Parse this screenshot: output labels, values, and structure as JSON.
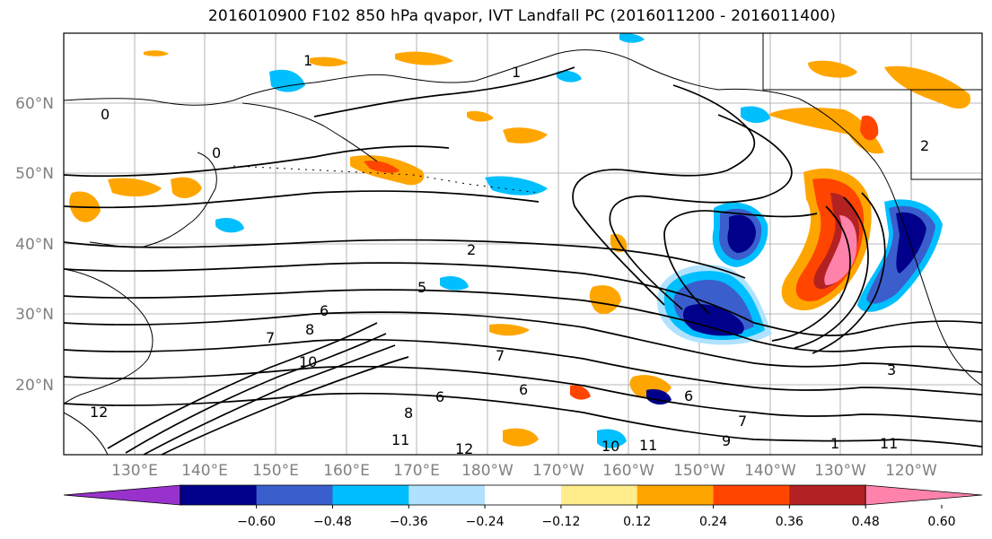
{
  "title": "2016010900 F102 850 hPa qvapor, IVT Landfall PC (2016011200 - 2016011400)",
  "lat_labels": [
    "60°N",
    "50°N",
    "40°N",
    "30°N",
    "20°N"
  ],
  "lon_labels": [
    "130°E",
    "140°E",
    "150°E",
    "160°E",
    "170°E",
    "180°W",
    "170°W",
    "160°W",
    "150°W",
    "140°W",
    "130°W",
    "120°W"
  ],
  "colorbar": {
    "colors": [
      "#9932cc",
      "#00008b",
      "#3a5fcd",
      "#00bfff",
      "#b0e2ff",
      "#ffffff",
      "#ffec8b",
      "#ffa500",
      "#ff4500",
      "#b22222",
      "#ff82ab"
    ],
    "tick_labels": [
      "-0.60",
      "-0.48",
      "-0.36",
      "-0.24",
      "-0.12",
      "0.12",
      "0.24",
      "0.36",
      "0.48",
      "0.60"
    ]
  },
  "contour_labels": [
    "1",
    "1",
    "0",
    "0",
    "2",
    "2",
    "5",
    "6",
    "7",
    "8",
    "10",
    "12",
    "7",
    "6",
    "6",
    "8",
    "11",
    "12",
    "10",
    "11",
    "9",
    "7",
    "3",
    "6",
    "1",
    "11"
  ],
  "colors": {
    "frame": "#000000",
    "grid": "#a0a0a0",
    "coast": "#000000",
    "contour": "#000000"
  }
}
